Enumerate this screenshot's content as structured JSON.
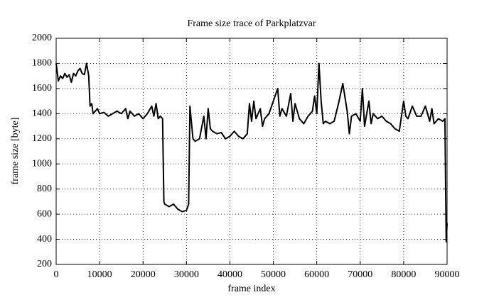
{
  "chart_data": {
    "type": "line",
    "title": "Frame size trace of Parkplatzvar",
    "x_label": "frame index",
    "y_label": "frame size [byte]",
    "xlim": [
      0,
      90000
    ],
    "xticks": [
      0,
      10000,
      20000,
      30000,
      40000,
      50000,
      60000,
      70000,
      80000,
      90000
    ],
    "ylim": [
      200,
      2000
    ],
    "yticks": [
      200,
      400,
      600,
      800,
      1000,
      1200,
      1400,
      1600,
      1800,
      2000
    ],
    "grid": true,
    "series": [
      {
        "color": "#000000",
        "x": [
          0,
          500,
          1000,
          1500,
          2000,
          2500,
          3000,
          3500,
          4000,
          4500,
          5000,
          5500,
          6000,
          6500,
          7000,
          7500,
          7800,
          8200,
          8500,
          9000,
          9500,
          10000,
          11000,
          12000,
          13000,
          14000,
          15000,
          16000,
          16500,
          17000,
          18000,
          19000,
          20000,
          21000,
          22000,
          22500,
          23000,
          23500,
          24000,
          24500,
          24800,
          25000,
          26000,
          27000,
          28000,
          29000,
          30000,
          30500,
          30800,
          31500,
          32000,
          33000,
          34000,
          34500,
          35000,
          35500,
          36000,
          37000,
          38000,
          39000,
          40000,
          41000,
          42000,
          43000,
          44000,
          44500,
          45000,
          45500,
          46000,
          47000,
          47500,
          48000,
          49000,
          50000,
          51000,
          51500,
          52000,
          53000,
          54000,
          54500,
          55000,
          56000,
          57000,
          58000,
          59000,
          59500,
          60000,
          60500,
          61000,
          61500,
          62000,
          63000,
          64000,
          65000,
          66000,
          67000,
          67500,
          68000,
          69000,
          70000,
          70500,
          71000,
          72000,
          72500,
          73000,
          74000,
          75000,
          76000,
          77000,
          78000,
          79000,
          80000,
          80500,
          81000,
          82000,
          83000,
          84000,
          85000,
          86000,
          86500,
          87000,
          88000,
          89000,
          89500,
          89800,
          90000
        ],
        "values": [
          1800,
          1660,
          1700,
          1680,
          1720,
          1690,
          1710,
          1650,
          1720,
          1700,
          1740,
          1760,
          1720,
          1710,
          1800,
          1700,
          1460,
          1480,
          1400,
          1420,
          1440,
          1400,
          1410,
          1380,
          1400,
          1420,
          1400,
          1440,
          1360,
          1420,
          1380,
          1400,
          1360,
          1400,
          1460,
          1380,
          1480,
          1360,
          1380,
          1360,
          700,
          680,
          660,
          680,
          640,
          620,
          630,
          680,
          1460,
          1200,
          1180,
          1200,
          1380,
          1200,
          1440,
          1280,
          1260,
          1240,
          1250,
          1200,
          1220,
          1260,
          1220,
          1200,
          1240,
          1480,
          1340,
          1500,
          1360,
          1440,
          1300,
          1360,
          1400,
          1500,
          1600,
          1380,
          1440,
          1380,
          1560,
          1340,
          1480,
          1360,
          1320,
          1380,
          1420,
          1540,
          1400,
          1800,
          1500,
          1320,
          1340,
          1320,
          1340,
          1480,
          1640,
          1420,
          1240,
          1380,
          1400,
          1340,
          1600,
          1300,
          1500,
          1320,
          1400,
          1360,
          1380,
          1340,
          1320,
          1280,
          1260,
          1500,
          1380,
          1360,
          1460,
          1380,
          1380,
          1460,
          1340,
          1440,
          1320,
          1360,
          1340,
          1360,
          380,
          530
        ]
      }
    ]
  }
}
